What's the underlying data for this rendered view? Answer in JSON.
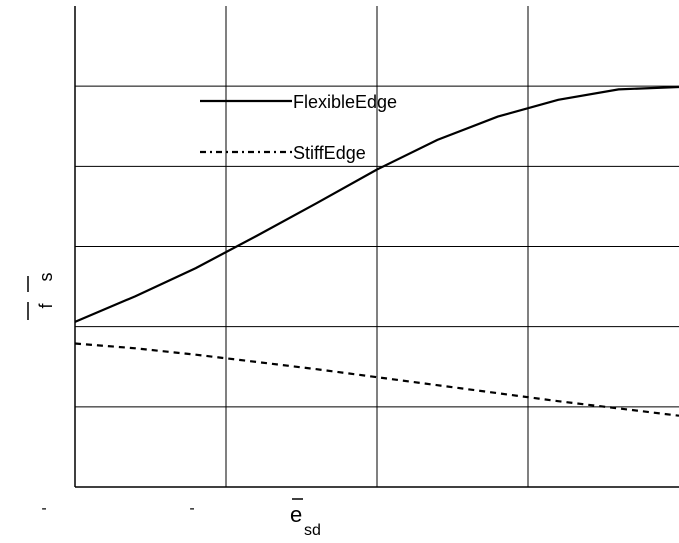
{
  "chart_data": {
    "type": "line",
    "xlabel": "e",
    "xlabel_sub": "sd",
    "ylabel_parts": [
      "f",
      "s"
    ],
    "x_tick_labels": [
      "-",
      "-"
    ],
    "xlim": [
      0,
      4
    ],
    "ylim": [
      0,
      6
    ],
    "grid": true,
    "legend_placement": "upper-center",
    "series": [
      {
        "name": "FlexibleEdge",
        "style": "solid",
        "color": "#000000",
        "x": [
          0,
          0.4,
          0.8,
          1.2,
          1.6,
          2.0,
          2.4,
          2.8,
          3.2,
          3.6,
          4.0
        ],
        "y": [
          2.06,
          2.38,
          2.73,
          3.13,
          3.54,
          3.96,
          4.33,
          4.62,
          4.83,
          4.96,
          4.99
        ]
      },
      {
        "name": "StiffEdge",
        "style": "dashed",
        "color": "#000000",
        "x": [
          0,
          0.4,
          0.8,
          1.2,
          1.6,
          2.0,
          2.4,
          2.8,
          3.2,
          3.6,
          4.0
        ],
        "y": [
          1.79,
          1.73,
          1.65,
          1.56,
          1.47,
          1.37,
          1.27,
          1.17,
          1.07,
          0.98,
          0.89
        ]
      }
    ]
  }
}
